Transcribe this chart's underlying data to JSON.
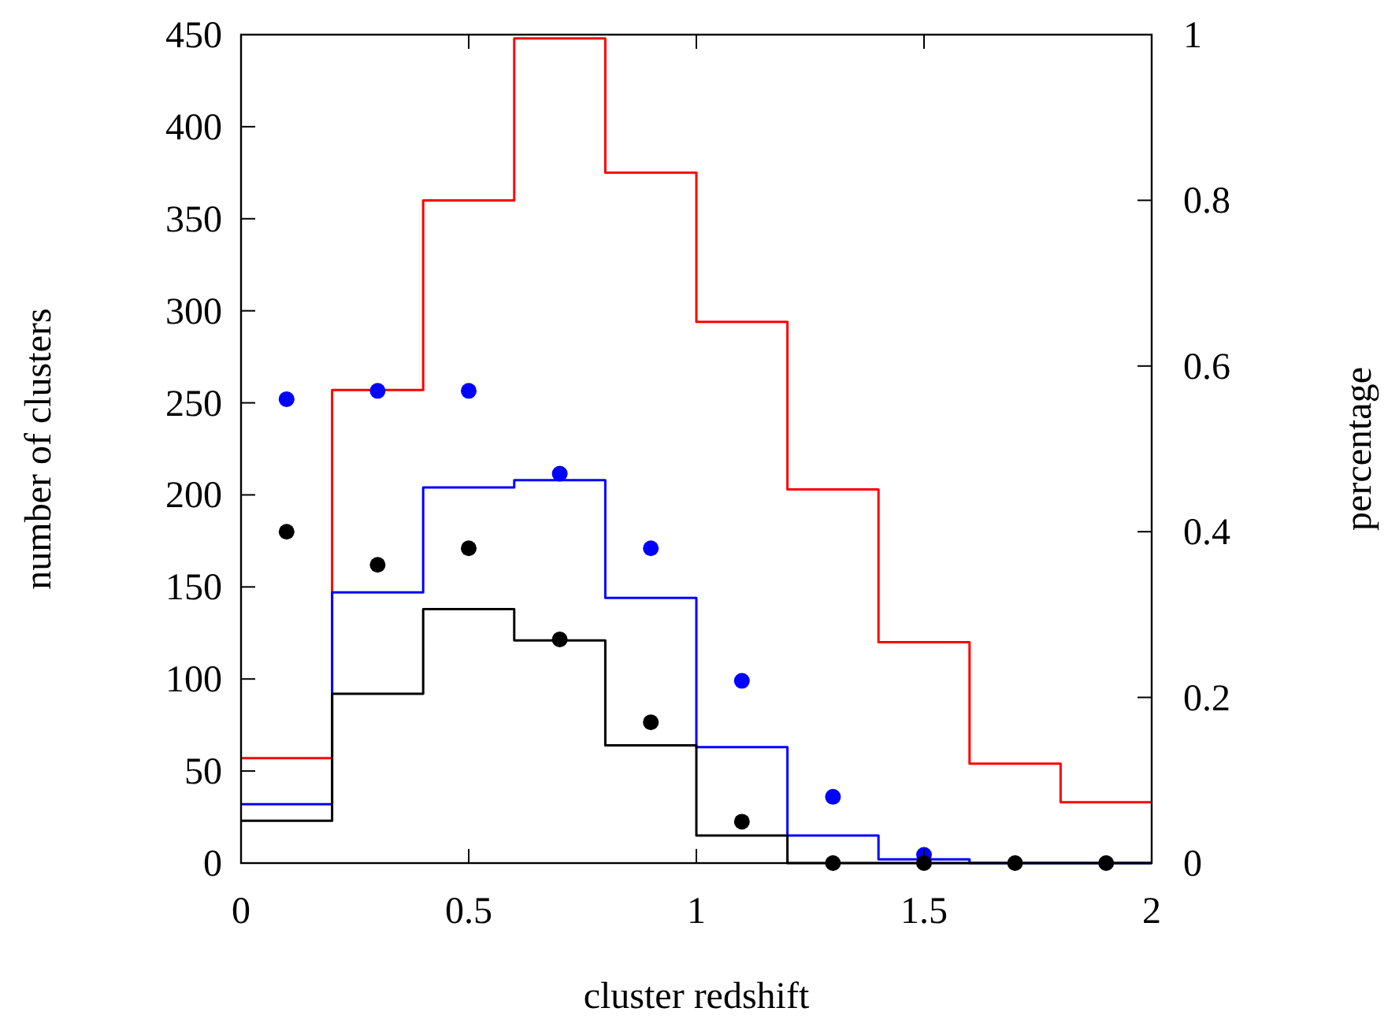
{
  "chart_data": {
    "type": "histogram",
    "xlabel": "cluster redshift",
    "ylabel": "number of clusters",
    "y2label": "percentage",
    "bins": [
      0,
      0.2,
      0.4,
      0.6,
      0.8,
      1,
      1.2,
      1.4,
      1.6,
      1.8,
      2
    ],
    "xlim": [
      0,
      2
    ],
    "xticks": [
      0,
      0.5,
      1,
      1.5,
      2
    ],
    "ylim": [
      0,
      450
    ],
    "yticks": [
      0,
      50,
      100,
      150,
      200,
      250,
      300,
      350,
      400,
      450
    ],
    "y2lim": [
      0,
      1
    ],
    "y2ticks": [
      0,
      0.2,
      0.4,
      0.6,
      0.8,
      1
    ],
    "grid": false,
    "series": [
      {
        "color": "#ff0000",
        "values": [
          57,
          257,
          360,
          448,
          375,
          294,
          203,
          120,
          54,
          33
        ]
      },
      {
        "color": "#0000ff",
        "values": [
          32,
          147,
          204,
          208,
          144,
          63,
          15,
          2,
          0,
          0
        ]
      },
      {
        "color": "#000000",
        "values": [
          23,
          92,
          138,
          121,
          64,
          15,
          0,
          0,
          0,
          0
        ]
      },
      {
        "type": "scatter",
        "axis": "y2",
        "marker": "circle",
        "color": "#0000ff",
        "x": [
          0.1,
          0.3,
          0.5,
          0.7,
          0.9,
          1.1,
          1.3,
          1.5
        ],
        "values": [
          0.56,
          0.57,
          0.57,
          0.47,
          0.38,
          0.22,
          0.08,
          0.01
        ]
      },
      {
        "type": "scatter",
        "axis": "y2",
        "marker": "circle",
        "color": "#000000",
        "x": [
          0.1,
          0.3,
          0.5,
          0.7,
          0.9,
          1.1,
          1.3,
          1.5,
          1.7,
          1.9
        ],
        "values": [
          0.4,
          0.36,
          0.38,
          0.27,
          0.17,
          0.05,
          0,
          0,
          0,
          0
        ]
      }
    ]
  }
}
